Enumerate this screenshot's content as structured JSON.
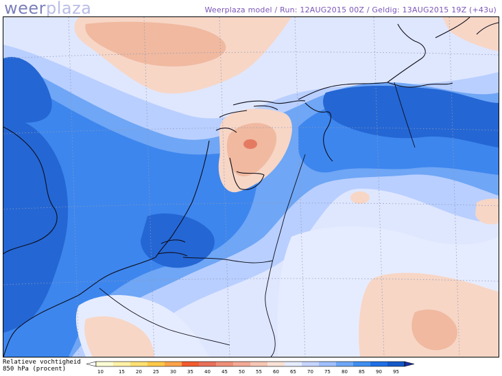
{
  "header": {
    "logo_part1": "weer",
    "logo_part2": "plaza",
    "run_info": "Weerplaza model / Run: 12AUG2015 00Z / Geldig: 13AUG2015 19Z (+43u)"
  },
  "legend": {
    "title_line1": "Relatieve vochtigheid",
    "title_line2": "850 hPa (procent)",
    "ticks": [
      "10",
      "15",
      "20",
      "25",
      "30",
      "35",
      "40",
      "45",
      "50",
      "55",
      "60",
      "65",
      "70",
      "75",
      "80",
      "85",
      "90",
      "95"
    ],
    "colors": [
      "#ffffd5",
      "#fff1a6",
      "#ffe072",
      "#ffc947",
      "#fca24a",
      "#f25c2e",
      "#e8705a",
      "#ef8f78",
      "#f2a996",
      "#f6c6b4",
      "#f9e2d6",
      "#e5ecff",
      "#c5d5ff",
      "#9fc0ff",
      "#6fa7f7",
      "#3f8ef0",
      "#1f6fe6",
      "#1559c8"
    ]
  },
  "map": {
    "variable": "relative-humidity-850hPa",
    "palette": {
      "dry_orange": "#f0b9a0",
      "light_orange": "#f7d6c6",
      "pale": "#e6ecff",
      "light_blue": "#b8ceff",
      "mid_blue": "#6fa6f5",
      "blue": "#3d86ee",
      "deep_blue": "#2466d4",
      "darkest": "#1a5cc4",
      "red_spot": "#e57a62"
    }
  }
}
